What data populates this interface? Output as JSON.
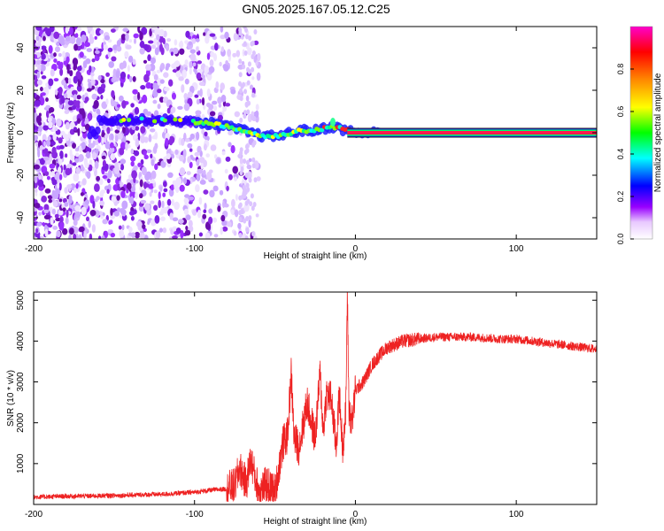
{
  "title": "GN05.2025.167.05.12.C25",
  "chart_data": [
    {
      "type": "heatmap",
      "xlabel": "Height of straight line (km)",
      "ylabel": "Frequency (Hz)",
      "xlim": [
        -200,
        150
      ],
      "ylim": [
        -50,
        50
      ],
      "xticks": [
        "-200",
        "-100",
        "0",
        "100"
      ],
      "yticks": [
        "-40",
        "-20",
        "0",
        "20",
        "40"
      ],
      "colorbar": {
        "label": "Normalized spectral amplitude",
        "range": [
          0,
          1
        ],
        "ticks": [
          "0.0",
          "0.2",
          "0.4",
          "0.6",
          "0.8"
        ],
        "colormap": [
          "#ffffff",
          "#9900ff",
          "#0000ff",
          "#00ffff",
          "#00ff00",
          "#ffff00",
          "#ff8800",
          "#ff0000",
          "#ff00cc"
        ]
      },
      "trace": {
        "description_points": [
          {
            "x": -160,
            "y": 6
          },
          {
            "x": -120,
            "y": 6
          },
          {
            "x": -100,
            "y": 5
          },
          {
            "x": -85,
            "y": 4
          },
          {
            "x": -75,
            "y": 2
          },
          {
            "x": -65,
            "y": 0
          },
          {
            "x": -55,
            "y": -2
          },
          {
            "x": -45,
            "y": -1
          },
          {
            "x": -35,
            "y": 1
          },
          {
            "x": -25,
            "y": 1
          },
          {
            "x": -15,
            "y": 3
          },
          {
            "x": -10,
            "y": 2
          },
          {
            "x": 0,
            "y": 0
          },
          {
            "x": 150,
            "y": 0
          }
        ],
        "noise_region_x": [
          -200,
          -60
        ]
      }
    },
    {
      "type": "line",
      "xlabel": "Height of straight line (km)",
      "ylabel": "SNR (10 * v/v)",
      "xlim": [
        -200,
        150
      ],
      "ylim": [
        0,
        5200
      ],
      "xticks": [
        "-200",
        "-100",
        "0",
        "100"
      ],
      "yticks": [
        "1000",
        "2000",
        "3000",
        "4000",
        "5000"
      ],
      "series": [
        {
          "color": "#ee2222",
          "x": [
            -200,
            -180,
            -160,
            -140,
            -120,
            -100,
            -90,
            -80,
            -75,
            -72,
            -70,
            -68,
            -65,
            -62,
            -60,
            -55,
            -50,
            -45,
            -42,
            -40,
            -38,
            -35,
            -30,
            -25,
            -22,
            -20,
            -18,
            -15,
            -12,
            -10,
            -8,
            -6,
            -5,
            -4,
            -2,
            0,
            5,
            10,
            15,
            20,
            30,
            40,
            50,
            60,
            70,
            80,
            90,
            100,
            110,
            120,
            130,
            140,
            150
          ],
          "y": [
            180,
            200,
            210,
            230,
            250,
            300,
            350,
            380,
            450,
            900,
            700,
            500,
            1100,
            600,
            350,
            500,
            300,
            1500,
            1700,
            3250,
            1600,
            1400,
            2500,
            1600,
            3200,
            1800,
            2700,
            2600,
            1400,
            2700,
            1400,
            2200,
            5200,
            2300,
            2000,
            2800,
            3000,
            3400,
            3650,
            3850,
            4000,
            4050,
            4100,
            4100,
            4100,
            4080,
            4050,
            4050,
            4000,
            3950,
            3900,
            3850,
            3800
          ]
        }
      ]
    }
  ]
}
